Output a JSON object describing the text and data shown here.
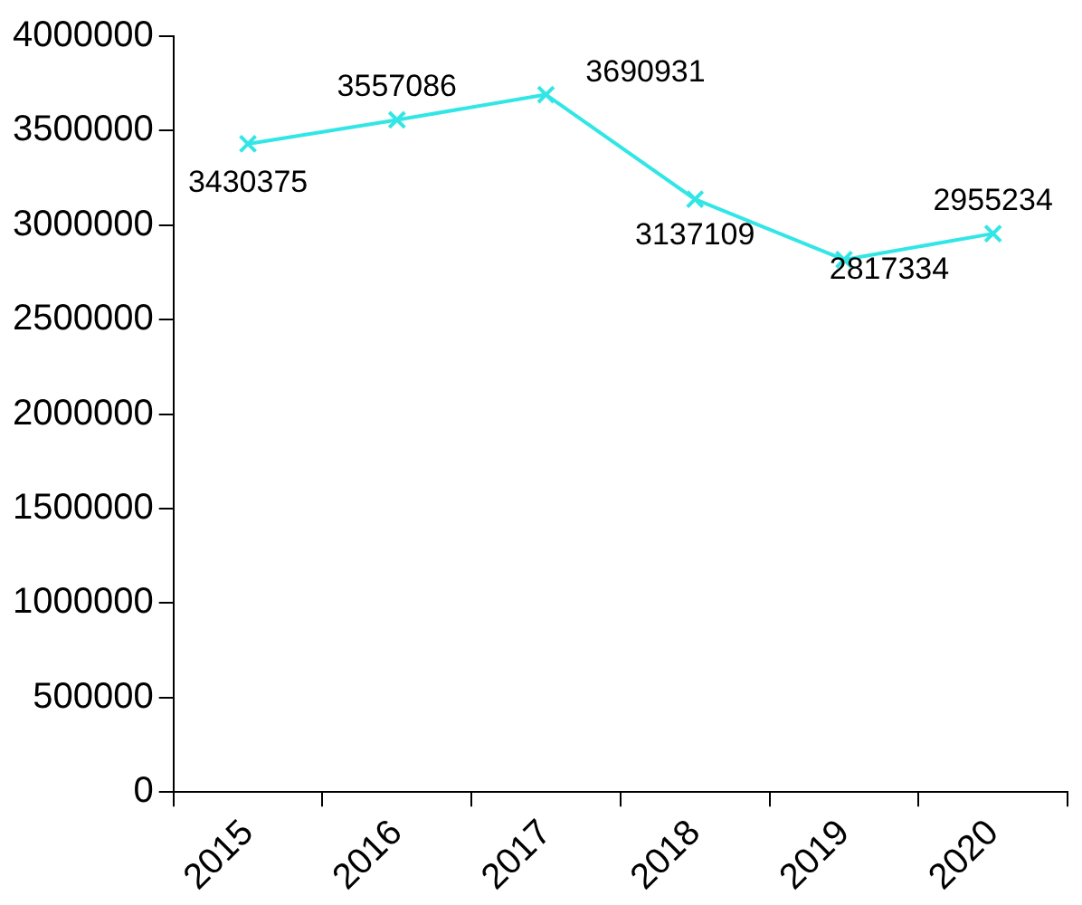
{
  "chart_data": {
    "type": "line",
    "categories": [
      "2015",
      "2016",
      "2017",
      "2018",
      "2019",
      "2020"
    ],
    "series": [
      {
        "color": "#33e6e6",
        "values": [
          3430375,
          3557086,
          3690931,
          3137109,
          2817334,
          2955234
        ]
      }
    ],
    "ylim": [
      0,
      4000000
    ],
    "yticks": [
      0,
      500000,
      1000000,
      1500000,
      2000000,
      2500000,
      3000000,
      3500000,
      4000000
    ],
    "grid": false,
    "legend": false,
    "marker": "cross",
    "line_style": "solid",
    "data_labels": true
  }
}
